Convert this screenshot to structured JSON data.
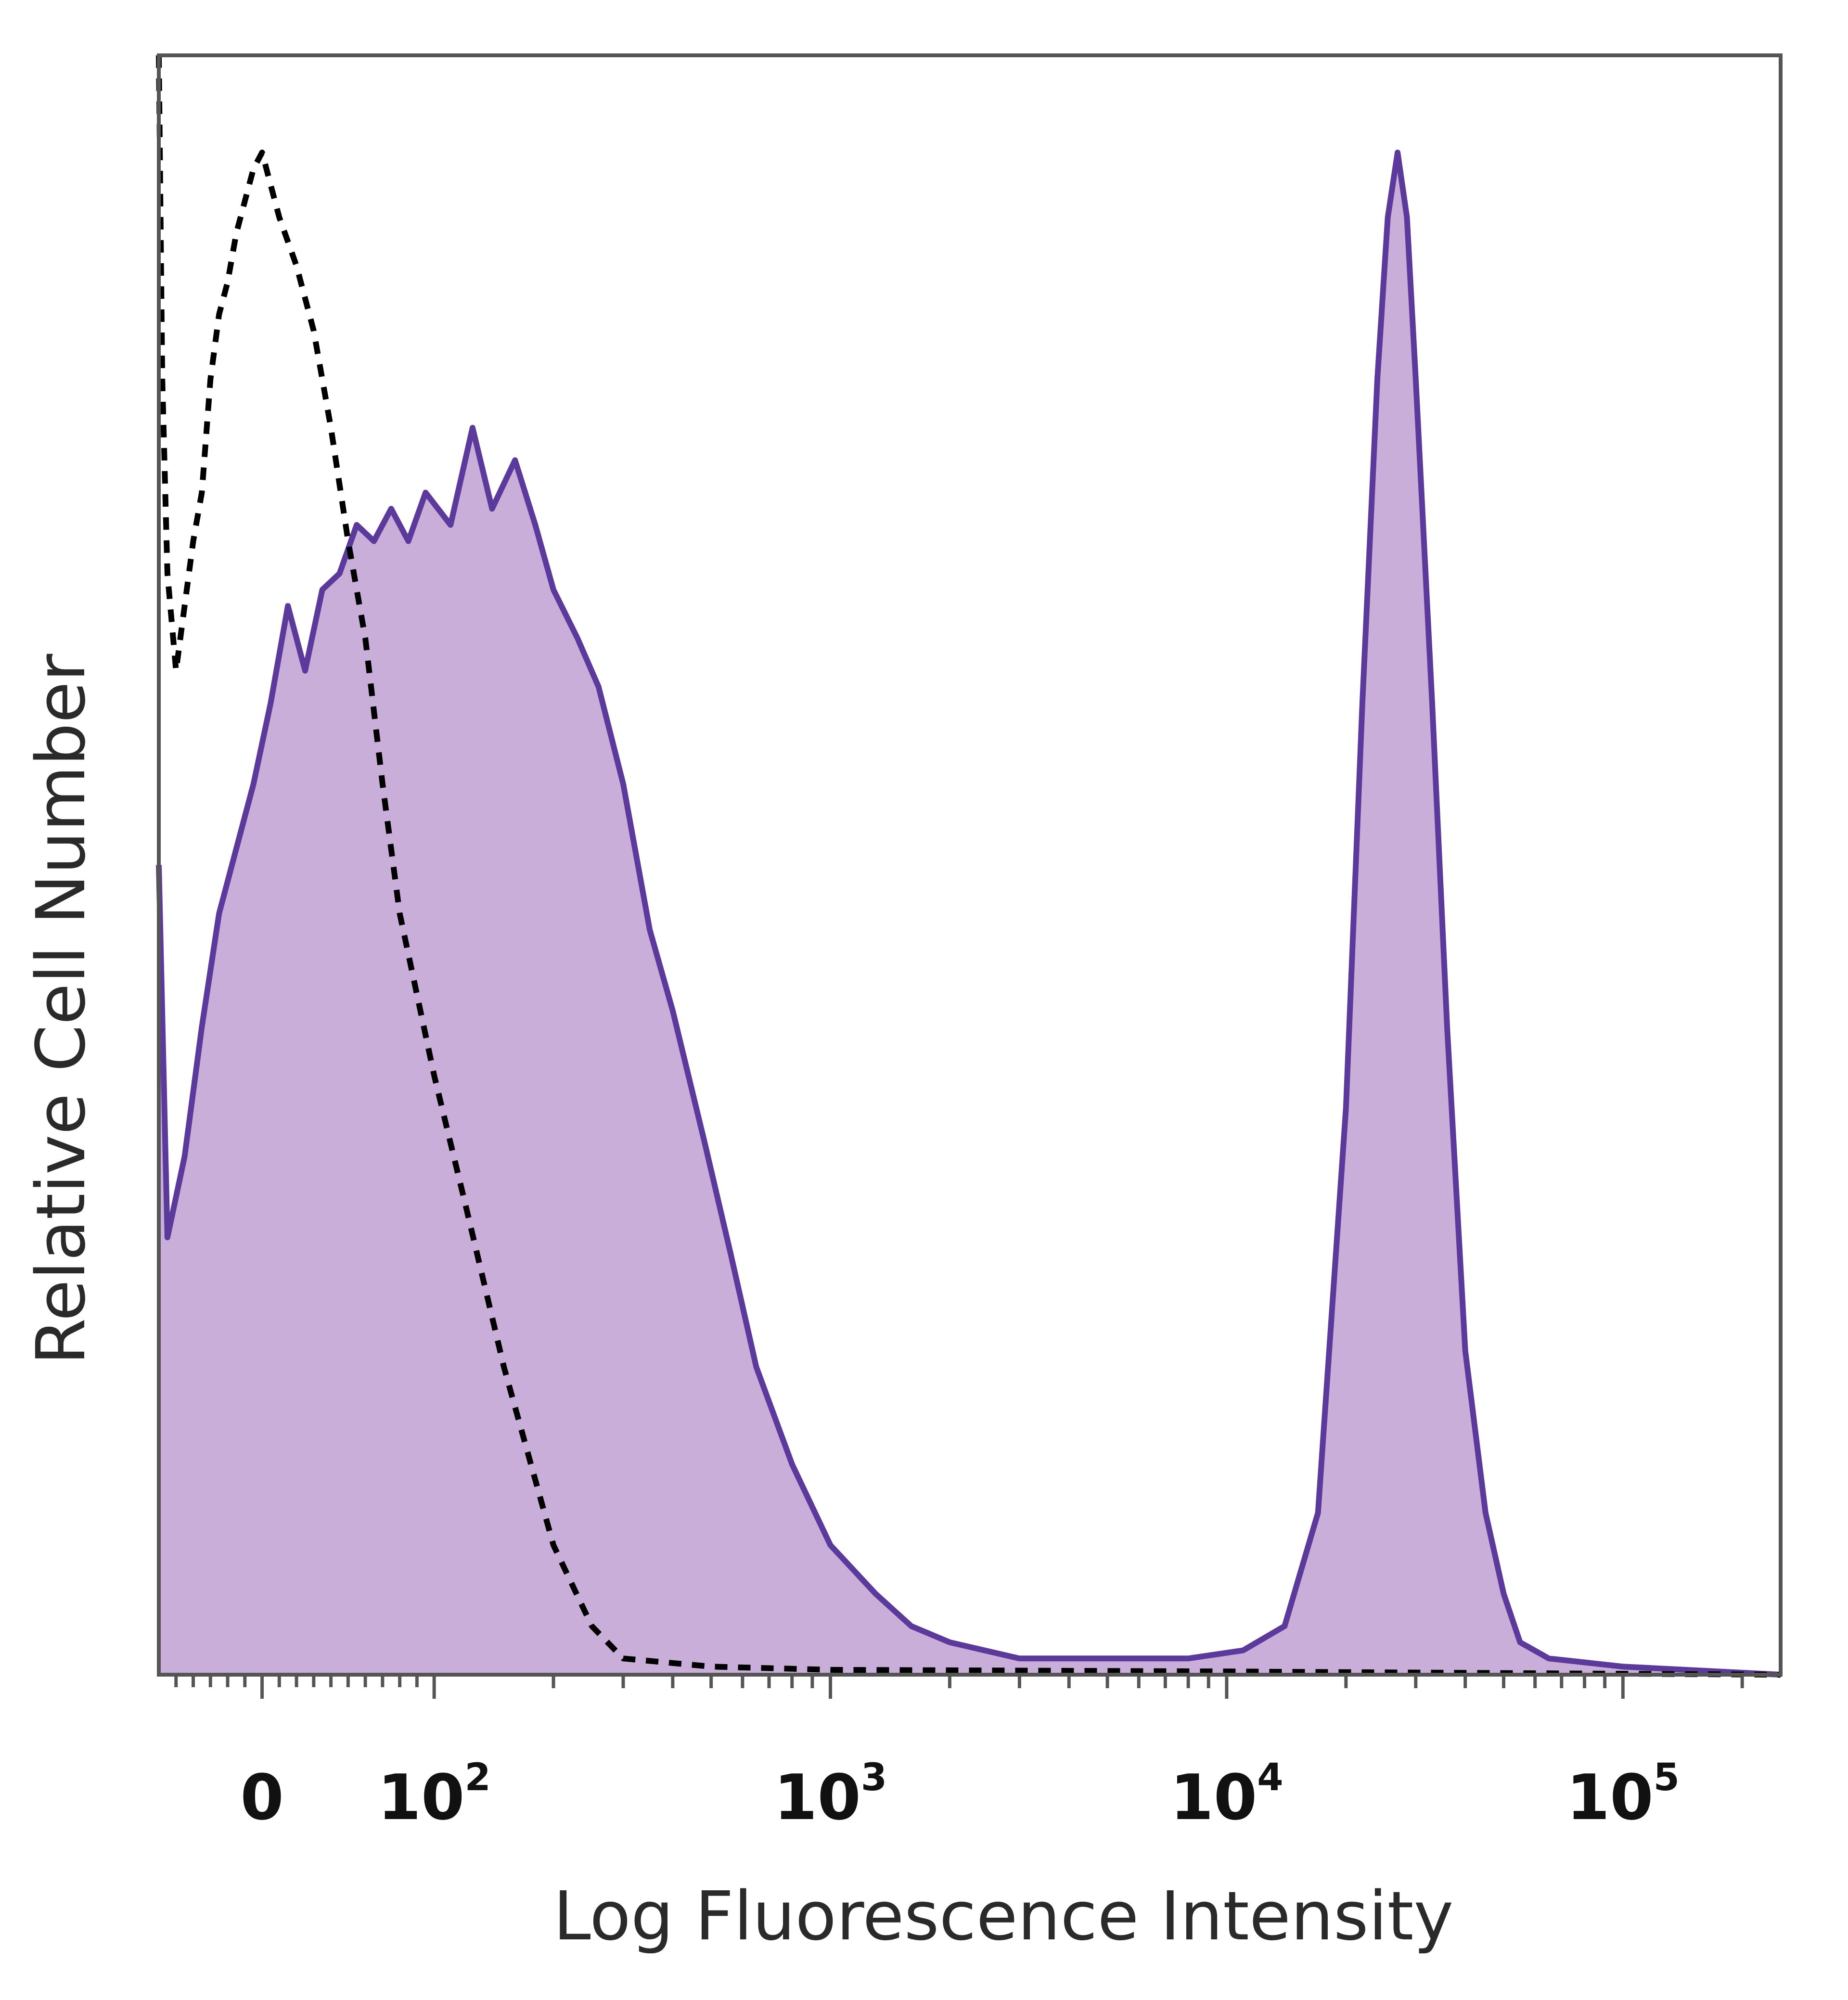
{
  "chart_data": {
    "type": "area",
    "title": "",
    "xlabel": "Log Fluorescence Intensity",
    "ylabel": "Relative Cell Number",
    "x_scale": "biexponential",
    "xlim": [
      -60,
      250000
    ],
    "ylim": [
      0,
      100
    ],
    "grid": false,
    "x_ticks": [
      {
        "value": 0,
        "base": "0",
        "exp": ""
      },
      {
        "value": 100,
        "base": "10",
        "exp": "2"
      },
      {
        "value": 1000,
        "base": "10",
        "exp": "3"
      },
      {
        "value": 10000,
        "base": "10",
        "exp": "4"
      },
      {
        "value": 100000,
        "base": "10",
        "exp": "5"
      }
    ],
    "series": [
      {
        "style": "filled-solid",
        "color": "#5b3a9b",
        "fill": "#c8aed8",
        "x": [
          -60,
          -55,
          -45,
          -35,
          -25,
          -15,
          -5,
          5,
          15,
          25,
          35,
          45,
          55,
          65,
          75,
          85,
          95,
          110,
          125,
          140,
          160,
          180,
          200,
          230,
          260,
          300,
          350,
          400,
          480,
          560,
          650,
          800,
          1000,
          1300,
          1600,
          2000,
          3000,
          5000,
          8000,
          11000,
          14000,
          17000,
          20000,
          22000,
          24000,
          25500,
          27000,
          28500,
          30000,
          33000,
          36000,
          40000,
          45000,
          50000,
          55000,
          65000,
          100000,
          250000
        ],
        "y": [
          50,
          27,
          32,
          40,
          47,
          51,
          55,
          60,
          66,
          62,
          67,
          68,
          71,
          70,
          72,
          70,
          73,
          71,
          77,
          72,
          75,
          71,
          67,
          64,
          61,
          55,
          46,
          41,
          33,
          26,
          19,
          13,
          8,
          5,
          3,
          2,
          1,
          1,
          1,
          1.5,
          3,
          10,
          35,
          60,
          80,
          90,
          94,
          90,
          80,
          60,
          40,
          20,
          10,
          5,
          2,
          1,
          0.5,
          0
        ]
      },
      {
        "style": "dashed",
        "color": "#000000",
        "x": [
          -60,
          -58,
          -55,
          -50,
          -45,
          -40,
          -35,
          -30,
          -25,
          -20,
          -15,
          -10,
          -5,
          0,
          5,
          10,
          20,
          30,
          40,
          50,
          60,
          70,
          80,
          100,
          120,
          150,
          200,
          250,
          300,
          500,
          1000,
          10000,
          250000
        ],
        "y": [
          100,
          80,
          68,
          62,
          66,
          70,
          73,
          80,
          84,
          86,
          89,
          91,
          93,
          94,
          92,
          90,
          87,
          83,
          77,
          70,
          64,
          55,
          47,
          37,
          29,
          19,
          8,
          3,
          1,
          0.5,
          0.3,
          0.2,
          0
        ]
      }
    ]
  }
}
